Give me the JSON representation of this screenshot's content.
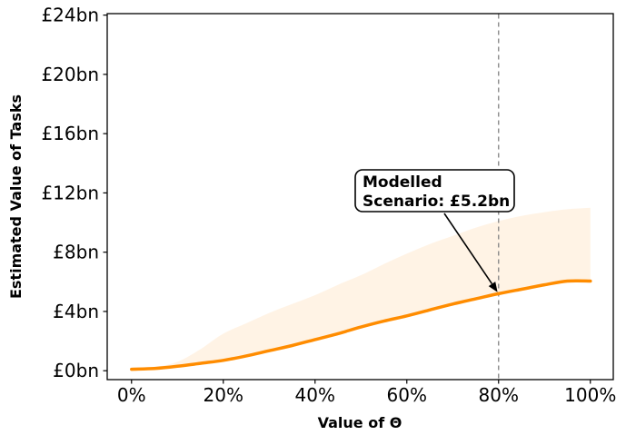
{
  "chart_data": {
    "type": "line",
    "title": "",
    "xlabel": "Value of Θ",
    "ylabel": "Estimated Value of Tasks",
    "xlim": [
      -5.3,
      105.0
    ],
    "ylim": [
      -0.6,
      24.1
    ],
    "grid": false,
    "legend": "none",
    "x_ticks": {
      "values": [
        0,
        20,
        40,
        60,
        80,
        100
      ],
      "labels": [
        "0%",
        "20%",
        "40%",
        "60%",
        "80%",
        "100%"
      ]
    },
    "y_ticks": {
      "values": [
        0,
        4,
        8,
        12,
        16,
        20,
        24
      ],
      "labels": [
        "£0bn",
        "£4bn",
        "£8bn",
        "£12bn",
        "£16bn",
        "£20bn",
        "£24bn"
      ]
    },
    "x": [
      0,
      5,
      10,
      15,
      20,
      25,
      30,
      35,
      40,
      45,
      50,
      55,
      60,
      65,
      70,
      75,
      80,
      85,
      90,
      95,
      100
    ],
    "series": [
      {
        "name": "Modelled scenario line",
        "type": "line",
        "color": "#FF8C00",
        "line_width": 3.5,
        "values": [
          0.1,
          0.15,
          0.3,
          0.5,
          0.7,
          1.0,
          1.35,
          1.7,
          2.1,
          2.5,
          2.95,
          3.35,
          3.7,
          4.1,
          4.5,
          4.85,
          5.2,
          5.5,
          5.8,
          6.05,
          6.05
        ]
      }
    ],
    "band": {
      "name": "scenario uncertainty band",
      "fill_color": "#FF8C00",
      "fill_opacity": 0.1,
      "lower_values": [
        0.1,
        0.15,
        0.3,
        0.5,
        0.7,
        1.0,
        1.35,
        1.7,
        2.1,
        2.5,
        2.95,
        3.35,
        3.7,
        4.1,
        4.5,
        4.85,
        5.2,
        5.5,
        5.8,
        6.05,
        6.05
      ],
      "upper_values": [
        0.1,
        0.25,
        0.6,
        1.45,
        2.5,
        3.2,
        3.9,
        4.5,
        5.1,
        5.8,
        6.45,
        7.2,
        7.9,
        8.55,
        9.1,
        9.65,
        10.1,
        10.45,
        10.7,
        10.9,
        11.0
      ]
    },
    "vline": {
      "x": 80,
      "color": "#8A8A8A",
      "style": "dashed",
      "width": 1.4
    },
    "annotation": {
      "line1": "Modelled",
      "line2": "Scenario: £5.2bn",
      "target_x": 80,
      "target_y": 5.2,
      "box_fill": "#FFFFFF",
      "box_border": "#000000",
      "arrow_color": "#000000"
    }
  },
  "colors": {
    "background": "#FFFFFF",
    "axis": "#000000",
    "text": "#000000"
  }
}
